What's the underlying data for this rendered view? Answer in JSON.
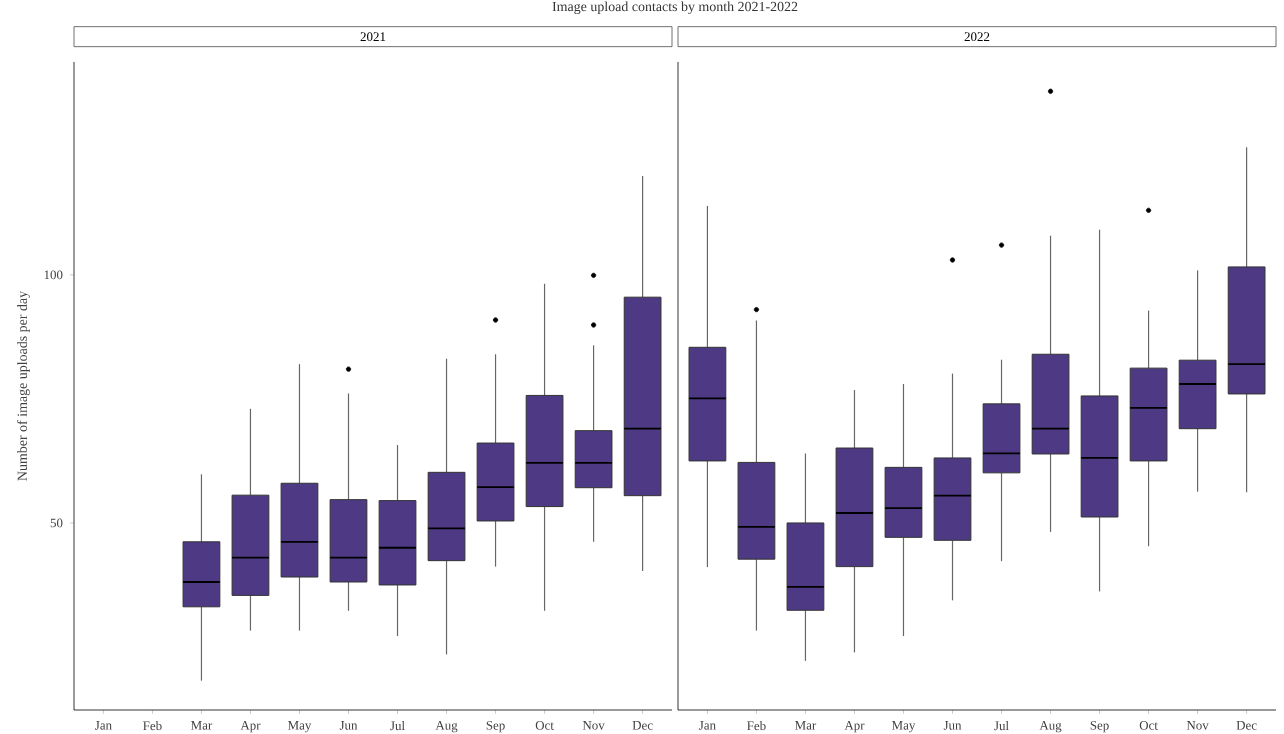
{
  "chart_data": [
    {
      "type": "box",
      "title": "Image upload contacts by month 2021-2022",
      "subtitle": "2021",
      "ylabel": "Number of image uploads per day",
      "color": "#4e3a84",
      "categories": [
        "Jan",
        "Feb",
        "Mar",
        "Apr",
        "May",
        "Jun",
        "Jul",
        "Aug",
        "Sep",
        "Oct",
        "Nov",
        "Dec"
      ],
      "boxes": [
        null,
        null,
        {
          "low": 18.2,
          "q1": 33.1,
          "median": 38.1,
          "q3": 46.2,
          "high": 59.8
        },
        {
          "low": 28.3,
          "q1": 35.4,
          "median": 43.0,
          "q3": 55.6,
          "high": 73.0
        },
        {
          "low": 28.3,
          "q1": 39.1,
          "median": 46.2,
          "q3": 58.0,
          "high": 82.0
        },
        {
          "low": 32.3,
          "q1": 38.1,
          "median": 43.0,
          "q3": 54.7,
          "high": 76.1,
          "outliers": [
            81.0
          ]
        },
        {
          "low": 27.2,
          "q1": 37.5,
          "median": 45.0,
          "q3": 54.5,
          "high": 65.7
        },
        {
          "low": 23.5,
          "q1": 42.4,
          "median": 48.9,
          "q3": 60.2,
          "high": 83.1
        },
        {
          "low": 41.2,
          "q1": 50.4,
          "median": 57.2,
          "q3": 66.1,
          "high": 84.0,
          "outliers": [
            90.9
          ]
        },
        {
          "low": 32.3,
          "q1": 53.3,
          "median": 62.1,
          "q3": 75.7,
          "high": 98.2
        },
        {
          "low": 46.2,
          "q1": 57.1,
          "median": 62.1,
          "q3": 68.6,
          "high": 85.8,
          "outliers": [
            89.9,
            99.9
          ]
        },
        {
          "low": 40.3,
          "q1": 55.5,
          "median": 69.0,
          "q3": 95.5,
          "high": 119.9
        }
      ],
      "ylim": [
        12.3,
        142.9
      ],
      "yticks": [
        50,
        100
      ]
    },
    {
      "type": "box",
      "subtitle": "2022",
      "color": "#4e3a84",
      "categories": [
        "Jan",
        "Feb",
        "Mar",
        "Apr",
        "May",
        "Jun",
        "Jul",
        "Aug",
        "Sep",
        "Oct",
        "Nov",
        "Dec"
      ],
      "boxes": [
        {
          "low": 41.1,
          "q1": 62.5,
          "median": 75.1,
          "q3": 85.4,
          "high": 113.9
        },
        {
          "low": 28.3,
          "q1": 42.7,
          "median": 49.2,
          "q3": 62.2,
          "high": 90.8,
          "outliers": [
            93.0
          ]
        },
        {
          "low": 22.2,
          "q1": 32.4,
          "median": 37.1,
          "q3": 50.0,
          "high": 64.0
        },
        {
          "low": 23.9,
          "q1": 41.2,
          "median": 52.0,
          "q3": 65.1,
          "high": 76.8
        },
        {
          "low": 27.2,
          "q1": 47.1,
          "median": 53.0,
          "q3": 61.2,
          "high": 78.0
        },
        {
          "low": 34.4,
          "q1": 46.5,
          "median": 55.5,
          "q3": 63.1,
          "high": 80.1,
          "outliers": [
            103.0
          ]
        },
        {
          "low": 42.3,
          "q1": 60.1,
          "median": 64.0,
          "q3": 74.0,
          "high": 82.9,
          "outliers": [
            106.0
          ]
        },
        {
          "low": 48.2,
          "q1": 63.9,
          "median": 69.0,
          "q3": 84.0,
          "high": 107.9,
          "outliers": [
            137.0
          ]
        },
        {
          "low": 36.2,
          "q1": 51.2,
          "median": 63.1,
          "q3": 75.6,
          "high": 109.1
        },
        {
          "low": 45.3,
          "q1": 62.5,
          "median": 73.2,
          "q3": 81.2,
          "high": 92.8,
          "outliers": [
            113.0
          ]
        },
        {
          "low": 56.3,
          "q1": 69.0,
          "median": 78.0,
          "q3": 82.8,
          "high": 100.9
        },
        {
          "low": 56.2,
          "q1": 76.0,
          "median": 82.0,
          "q3": 101.6,
          "high": 125.7
        }
      ],
      "ylim": [
        12.3,
        142.9
      ],
      "tick_labels": "x"
    }
  ]
}
